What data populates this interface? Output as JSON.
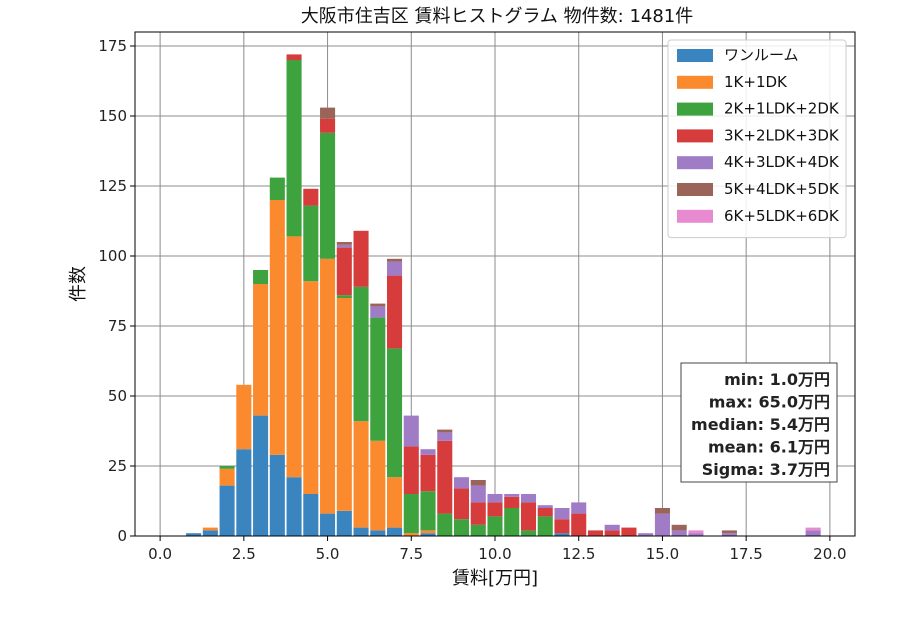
{
  "chart_data": {
    "type": "bar",
    "stacked": true,
    "title": "大阪市住吉区 賃料ヒストグラム 物件数: 1481件",
    "xlabel": "賃料[万円]",
    "ylabel": "件数",
    "xlim": [
      -0.75,
      20.75
    ],
    "ylim": [
      0,
      180
    ],
    "xticks": [
      0.0,
      2.5,
      5.0,
      7.5,
      10.0,
      12.5,
      15.0,
      17.5,
      20.0
    ],
    "xtick_labels": [
      "0.0",
      "2.5",
      "5.0",
      "7.5",
      "10.0",
      "12.5",
      "15.0",
      "17.5",
      "20.0"
    ],
    "yticks": [
      0,
      25,
      50,
      75,
      100,
      125,
      150,
      175
    ],
    "ytick_labels": [
      "0",
      "25",
      "50",
      "75",
      "100",
      "125",
      "150",
      "175"
    ],
    "grid": true,
    "legend_position": "top-right",
    "bin_width": 0.5,
    "x": [
      1.0,
      1.5,
      2.0,
      2.5,
      3.0,
      3.5,
      4.0,
      4.5,
      5.0,
      5.5,
      6.0,
      6.5,
      7.0,
      7.5,
      8.0,
      8.5,
      9.0,
      9.5,
      10.0,
      10.5,
      11.0,
      11.5,
      12.0,
      12.5,
      13.0,
      13.5,
      14.0,
      14.5,
      15.0,
      15.5,
      16.0,
      16.5,
      17.0,
      17.5,
      18.0,
      18.5,
      19.0,
      19.5
    ],
    "series": [
      {
        "name": "ワンルーム",
        "color": "#3a85c0",
        "values": [
          1,
          2,
          18,
          31,
          43,
          29,
          21,
          15,
          8,
          9,
          3,
          2,
          3,
          0,
          1,
          0,
          0,
          0,
          0,
          0,
          0,
          0,
          1,
          0,
          0,
          0,
          0,
          0,
          0,
          0,
          0,
          0,
          0,
          0,
          0,
          0,
          0,
          0
        ]
      },
      {
        "name": "1K+1DK",
        "color": "#fb8a2e",
        "values": [
          0,
          1,
          6,
          23,
          47,
          91,
          86,
          76,
          91,
          76,
          38,
          32,
          18,
          1,
          1,
          0,
          0,
          0,
          0,
          0,
          0,
          0,
          0,
          0,
          0,
          0,
          0,
          0,
          0,
          0,
          0,
          0,
          0,
          0,
          0,
          0,
          0,
          0
        ]
      },
      {
        "name": "2K+1LDK+2DK",
        "color": "#3ea33e",
        "values": [
          0,
          0,
          1,
          0,
          5,
          8,
          63,
          27,
          45,
          1,
          48,
          44,
          46,
          14,
          14,
          8,
          6,
          4,
          7,
          10,
          2,
          7,
          0,
          0,
          0,
          0,
          0,
          0,
          0,
          0,
          0,
          0,
          0,
          0,
          0,
          0,
          0,
          0
        ]
      },
      {
        "name": "3K+2LDK+3DK",
        "color": "#d63c3c",
        "values": [
          0,
          0,
          0,
          0,
          0,
          0,
          2,
          6,
          5,
          17,
          20,
          0,
          26,
          17,
          13,
          26,
          11,
          8,
          5,
          4,
          10,
          3,
          5,
          8,
          2,
          2,
          3,
          0,
          0,
          0,
          0,
          0,
          0,
          0,
          0,
          0,
          0,
          0
        ]
      },
      {
        "name": "4K+3LDK+4DK",
        "color": "#a07cc6",
        "values": [
          0,
          0,
          0,
          0,
          0,
          0,
          0,
          0,
          0,
          1,
          0,
          4,
          5,
          11,
          2,
          3,
          4,
          6,
          3,
          1,
          3,
          1,
          4,
          4,
          0,
          2,
          0,
          1,
          8,
          2,
          1,
          0,
          1,
          0,
          0,
          0,
          0,
          2
        ]
      },
      {
        "name": "5K+4LDK+5DK",
        "color": "#9a6459",
        "values": [
          0,
          0,
          0,
          0,
          0,
          0,
          0,
          0,
          4,
          1,
          0,
          1,
          1,
          0,
          0,
          1,
          0,
          2,
          0,
          0,
          0,
          0,
          0,
          0,
          0,
          0,
          0,
          0,
          2,
          2,
          0,
          0,
          1,
          0,
          0,
          0,
          0,
          0
        ]
      },
      {
        "name": "6K+5LDK+6DK",
        "color": "#e88ad0",
        "values": [
          0,
          0,
          0,
          0,
          0,
          0,
          0,
          0,
          0,
          0,
          0,
          0,
          0,
          0,
          0,
          0,
          0,
          0,
          0,
          0,
          0,
          0,
          0,
          0,
          0,
          0,
          0,
          0,
          0,
          0,
          1,
          0,
          0,
          0,
          0,
          0,
          0,
          1
        ]
      }
    ],
    "stats": [
      "min: 1.0万円",
      "max: 65.0万円",
      "median: 5.4万円",
      "mean: 6.1万円",
      "Sigma: 3.7万円"
    ]
  }
}
